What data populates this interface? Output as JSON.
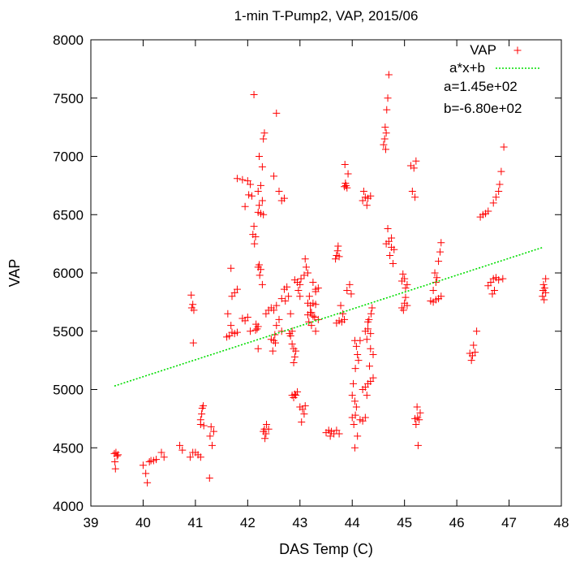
{
  "chart_data": {
    "type": "scatter",
    "title": "1-min T-Pump2, VAP, 2015/06",
    "xlabel": "DAS Temp (C)",
    "ylabel": "VAP",
    "xlim": [
      39,
      48
    ],
    "ylim": [
      4000,
      8000
    ],
    "xticks": [
      "39",
      "40",
      "41",
      "42",
      "43",
      "44",
      "45",
      "46",
      "47",
      "48"
    ],
    "yticks": [
      "4000",
      "4500",
      "5000",
      "5500",
      "6000",
      "6500",
      "7000",
      "7500",
      "8000"
    ],
    "grid": false,
    "legend_position": "top-right",
    "colors": {
      "points": "#ff0000",
      "fit": "#00dd00"
    },
    "series": [
      {
        "name": "VAP",
        "kind": "points",
        "marker": "plus",
        "points": [
          [
            39.45,
            4450
          ],
          [
            39.5,
            4430
          ],
          [
            39.48,
            4460
          ],
          [
            39.46,
            4380
          ],
          [
            39.47,
            4320
          ],
          [
            39.52,
            4440
          ],
          [
            40.0,
            4350
          ],
          [
            40.05,
            4280
          ],
          [
            40.08,
            4200
          ],
          [
            40.12,
            4380
          ],
          [
            40.15,
            4390
          ],
          [
            40.2,
            4390
          ],
          [
            40.25,
            4400
          ],
          [
            40.35,
            4460
          ],
          [
            40.4,
            4420
          ],
          [
            40.7,
            4520
          ],
          [
            40.75,
            4480
          ],
          [
            40.9,
            4420
          ],
          [
            41.0,
            4460
          ],
          [
            41.05,
            4440
          ],
          [
            41.1,
            4420
          ],
          [
            40.95,
            4460
          ],
          [
            40.93,
            5700
          ],
          [
            40.95,
            5730
          ],
          [
            40.97,
            5680
          ],
          [
            40.92,
            5810
          ],
          [
            40.96,
            5400
          ],
          [
            41.1,
            4740
          ],
          [
            41.15,
            4860
          ],
          [
            41.12,
            4790
          ],
          [
            41.1,
            4700
          ],
          [
            41.13,
            4840
          ],
          [
            41.16,
            4690
          ],
          [
            41.3,
            4680
          ],
          [
            41.28,
            4600
          ],
          [
            41.32,
            4520
          ],
          [
            41.35,
            4640
          ],
          [
            41.27,
            4240
          ],
          [
            41.6,
            5450
          ],
          [
            41.65,
            5460
          ],
          [
            41.7,
            5490
          ],
          [
            41.75,
            5480
          ],
          [
            41.8,
            5490
          ],
          [
            41.68,
            5550
          ],
          [
            41.62,
            5650
          ],
          [
            41.68,
            6040
          ],
          [
            41.75,
            5830
          ],
          [
            41.8,
            5860
          ],
          [
            41.7,
            5800
          ],
          [
            41.8,
            6810
          ],
          [
            41.9,
            6800
          ],
          [
            42.0,
            6790
          ],
          [
            42.05,
            6760
          ],
          [
            42.02,
            6670
          ],
          [
            41.95,
            6570
          ],
          [
            42.08,
            6660
          ],
          [
            41.9,
            5610
          ],
          [
            41.95,
            5590
          ],
          [
            42.0,
            5620
          ],
          [
            42.05,
            5500
          ],
          [
            42.1,
            6330
          ],
          [
            42.15,
            6310
          ],
          [
            42.12,
            6400
          ],
          [
            42.13,
            6250
          ],
          [
            42.12,
            7530
          ],
          [
            42.15,
            5510
          ],
          [
            42.18,
            5520
          ],
          [
            42.2,
            5540
          ],
          [
            42.16,
            5560
          ],
          [
            42.2,
            5350
          ],
          [
            42.2,
            6050
          ],
          [
            42.22,
            6070
          ],
          [
            42.25,
            6030
          ],
          [
            42.23,
            5980
          ],
          [
            42.28,
            5900
          ],
          [
            42.2,
            6520
          ],
          [
            42.25,
            6510
          ],
          [
            42.3,
            6500
          ],
          [
            42.22,
            6580
          ],
          [
            42.28,
            6620
          ],
          [
            42.25,
            6750
          ],
          [
            42.2,
            6700
          ],
          [
            42.28,
            6910
          ],
          [
            42.3,
            7150
          ],
          [
            42.32,
            7200
          ],
          [
            42.22,
            7000
          ],
          [
            42.3,
            4640
          ],
          [
            42.35,
            4620
          ],
          [
            42.32,
            4660
          ],
          [
            42.4,
            4660
          ],
          [
            42.33,
            4580
          ],
          [
            42.36,
            4700
          ],
          [
            42.35,
            5650
          ],
          [
            42.4,
            5680
          ],
          [
            42.45,
            5700
          ],
          [
            42.5,
            5680
          ],
          [
            42.55,
            5720
          ],
          [
            42.45,
            5430
          ],
          [
            42.5,
            5420
          ],
          [
            42.53,
            5400
          ],
          [
            42.48,
            5330
          ],
          [
            42.52,
            5470
          ],
          [
            42.55,
            7370
          ],
          [
            42.5,
            6830
          ],
          [
            42.65,
            6620
          ],
          [
            42.7,
            6640
          ],
          [
            42.6,
            6700
          ],
          [
            42.55,
            5550
          ],
          [
            42.6,
            5600
          ],
          [
            42.65,
            5500
          ],
          [
            42.7,
            5860
          ],
          [
            42.75,
            5880
          ],
          [
            42.78,
            5800
          ],
          [
            42.65,
            5780
          ],
          [
            42.72,
            5760
          ],
          [
            42.82,
            5650
          ],
          [
            42.8,
            5480
          ],
          [
            42.82,
            5460
          ],
          [
            42.85,
            5500
          ],
          [
            42.88,
            5350
          ],
          [
            42.9,
            5280
          ],
          [
            42.92,
            5330
          ],
          [
            42.88,
            5230
          ],
          [
            42.85,
            5390
          ],
          [
            42.85,
            4950
          ],
          [
            42.88,
            4930
          ],
          [
            42.9,
            4960
          ],
          [
            42.92,
            4950
          ],
          [
            42.95,
            4980
          ],
          [
            42.9,
            5940
          ],
          [
            42.95,
            5920
          ],
          [
            43.0,
            5900
          ],
          [
            42.97,
            5850
          ],
          [
            43.02,
            5950
          ],
          [
            43.0,
            5800
          ],
          [
            43.0,
            4850
          ],
          [
            43.05,
            4830
          ],
          [
            43.1,
            4860
          ],
          [
            43.08,
            4790
          ],
          [
            43.03,
            4720
          ],
          [
            43.1,
            6120
          ],
          [
            43.12,
            6050
          ],
          [
            43.15,
            6000
          ],
          [
            43.08,
            5980
          ],
          [
            43.15,
            5740
          ],
          [
            43.2,
            5720
          ],
          [
            43.25,
            5740
          ],
          [
            43.3,
            5730
          ],
          [
            43.18,
            5800
          ],
          [
            43.22,
            5660
          ],
          [
            43.3,
            5840
          ],
          [
            43.15,
            5640
          ],
          [
            43.2,
            5660
          ],
          [
            43.25,
            5630
          ],
          [
            43.28,
            5620
          ],
          [
            43.17,
            5580
          ],
          [
            43.22,
            5550
          ],
          [
            43.3,
            5860
          ],
          [
            43.35,
            5870
          ],
          [
            43.25,
            5920
          ],
          [
            43.35,
            5600
          ],
          [
            43.3,
            5500
          ],
          [
            43.5,
            4630
          ],
          [
            43.55,
            4650
          ],
          [
            43.6,
            4640
          ],
          [
            43.65,
            4620
          ],
          [
            43.7,
            4650
          ],
          [
            43.75,
            4620
          ],
          [
            43.58,
            4600
          ],
          [
            43.7,
            6150
          ],
          [
            43.75,
            6140
          ],
          [
            43.72,
            6190
          ],
          [
            43.68,
            6120
          ],
          [
            43.73,
            6230
          ],
          [
            43.7,
            5570
          ],
          [
            43.75,
            5590
          ],
          [
            43.8,
            5580
          ],
          [
            43.85,
            5600
          ],
          [
            43.82,
            5650
          ],
          [
            43.78,
            5720
          ],
          [
            43.85,
            6740
          ],
          [
            43.88,
            6750
          ],
          [
            43.9,
            6730
          ],
          [
            43.87,
            6770
          ],
          [
            43.92,
            6850
          ],
          [
            43.86,
            6930
          ],
          [
            43.9,
            5850
          ],
          [
            43.95,
            5900
          ],
          [
            43.98,
            5820
          ],
          [
            44.0,
            4950
          ],
          [
            44.02,
            5050
          ],
          [
            44.05,
            4900
          ],
          [
            44.08,
            4850
          ],
          [
            44.06,
            4780
          ],
          [
            44.03,
            4700
          ],
          [
            44.1,
            4600
          ],
          [
            44.05,
            4500
          ],
          [
            44.0,
            4760
          ],
          [
            44.15,
            4740
          ],
          [
            44.2,
            4730
          ],
          [
            44.25,
            4760
          ],
          [
            44.05,
            5420
          ],
          [
            44.08,
            5370
          ],
          [
            44.1,
            5300
          ],
          [
            44.12,
            5250
          ],
          [
            44.06,
            5180
          ],
          [
            44.15,
            5420
          ],
          [
            44.2,
            5000
          ],
          [
            44.25,
            5020
          ],
          [
            44.3,
            5050
          ],
          [
            44.35,
            5070
          ],
          [
            44.4,
            5100
          ],
          [
            44.28,
            4950
          ],
          [
            44.2,
            6620
          ],
          [
            44.25,
            6650
          ],
          [
            44.3,
            6640
          ],
          [
            44.35,
            6660
          ],
          [
            44.22,
            6700
          ],
          [
            44.28,
            6580
          ],
          [
            44.25,
            5500
          ],
          [
            44.3,
            5520
          ],
          [
            44.35,
            5480
          ],
          [
            44.32,
            5600
          ],
          [
            44.36,
            5650
          ],
          [
            44.38,
            5700
          ],
          [
            44.3,
            5580
          ],
          [
            44.28,
            5430
          ],
          [
            44.35,
            5350
          ],
          [
            44.4,
            5300
          ],
          [
            44.33,
            5200
          ],
          [
            44.6,
            7100
          ],
          [
            44.62,
            7150
          ],
          [
            44.65,
            7200
          ],
          [
            44.63,
            7250
          ],
          [
            44.66,
            7400
          ],
          [
            44.68,
            7500
          ],
          [
            44.7,
            7700
          ],
          [
            44.64,
            7060
          ],
          [
            44.65,
            6250
          ],
          [
            44.7,
            6270
          ],
          [
            44.75,
            6220
          ],
          [
            44.8,
            6200
          ],
          [
            44.72,
            6150
          ],
          [
            44.78,
            6080
          ],
          [
            44.68,
            6380
          ],
          [
            44.75,
            6300
          ],
          [
            44.95,
            5700
          ],
          [
            45.0,
            5740
          ],
          [
            45.05,
            5720
          ],
          [
            44.98,
            5680
          ],
          [
            45.02,
            5790
          ],
          [
            44.95,
            5930
          ],
          [
            45.0,
            5950
          ],
          [
            45.05,
            5900
          ],
          [
            44.97,
            5990
          ],
          [
            45.02,
            5870
          ],
          [
            45.2,
            6650
          ],
          [
            45.15,
            6700
          ],
          [
            45.22,
            6960
          ],
          [
            45.18,
            6900
          ],
          [
            45.12,
            6920
          ],
          [
            45.2,
            4750
          ],
          [
            45.25,
            4760
          ],
          [
            45.28,
            4740
          ],
          [
            45.22,
            4700
          ],
          [
            45.3,
            4800
          ],
          [
            45.24,
            4850
          ],
          [
            45.26,
            4520
          ],
          [
            45.5,
            5760
          ],
          [
            45.55,
            5750
          ],
          [
            45.6,
            5770
          ],
          [
            45.65,
            5780
          ],
          [
            45.7,
            5800
          ],
          [
            45.55,
            5850
          ],
          [
            45.6,
            5920
          ],
          [
            45.62,
            5960
          ],
          [
            45.58,
            6000
          ],
          [
            45.65,
            6100
          ],
          [
            45.68,
            6180
          ],
          [
            45.7,
            6260
          ],
          [
            46.25,
            5310
          ],
          [
            46.3,
            5290
          ],
          [
            46.35,
            5320
          ],
          [
            46.28,
            5250
          ],
          [
            46.32,
            5380
          ],
          [
            46.38,
            5500
          ],
          [
            46.45,
            6480
          ],
          [
            46.5,
            6500
          ],
          [
            46.55,
            6510
          ],
          [
            46.6,
            6530
          ],
          [
            46.7,
            6600
          ],
          [
            46.75,
            6650
          ],
          [
            46.8,
            6700
          ],
          [
            46.82,
            6760
          ],
          [
            46.85,
            6870
          ],
          [
            46.9,
            7080
          ],
          [
            46.6,
            5890
          ],
          [
            46.65,
            5920
          ],
          [
            46.7,
            5950
          ],
          [
            46.75,
            5960
          ],
          [
            46.8,
            5940
          ],
          [
            46.88,
            5950
          ],
          [
            46.72,
            5850
          ],
          [
            46.68,
            5820
          ],
          [
            47.65,
            5850
          ],
          [
            47.68,
            5870
          ],
          [
            47.7,
            5830
          ],
          [
            47.66,
            5900
          ],
          [
            47.64,
            5800
          ],
          [
            47.7,
            5950
          ],
          [
            47.67,
            5770
          ]
        ]
      },
      {
        "name": "a*x+b",
        "kind": "line",
        "style": "dotted",
        "x": [
          39.45,
          47.65
        ],
        "y": [
          5030,
          6220
        ]
      }
    ],
    "annotations": [
      "a=1.45e+02",
      "b=-6.80e+02"
    ]
  }
}
